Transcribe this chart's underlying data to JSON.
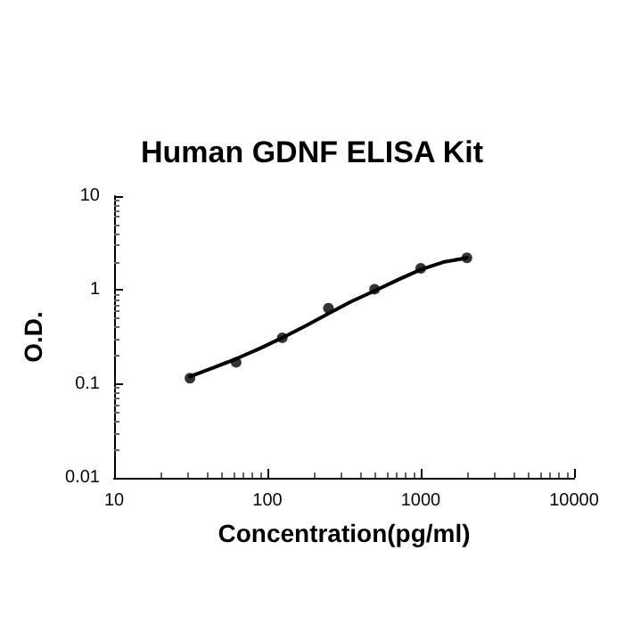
{
  "chart_data": {
    "type": "scatter",
    "title": "Human GDNF ELISA Kit",
    "xlabel": "Concentration(pg/ml)",
    "ylabel": "O.D.",
    "log": "xy",
    "xlim": [
      10,
      10000
    ],
    "xticks": [
      10,
      100,
      1000,
      10000
    ],
    "ylim": [
      0.01,
      10
    ],
    "yticks": [
      0.01,
      0.1,
      1,
      10
    ],
    "grid": false,
    "marker": "circle",
    "series": [
      {
        "color": "#000000",
        "x": [
          31.25,
          62.5,
          125,
          250,
          500,
          1000,
          2000
        ],
        "values": [
          0.115,
          0.17,
          0.31,
          0.64,
          1.02,
          1.7,
          2.2
        ]
      },
      {
        "type": "line",
        "color": "#000000",
        "marker": "none",
        "line_style": "solid",
        "x": [
          31.25,
          45,
          62.5,
          90,
          125,
          180,
          250,
          350,
          500,
          700,
          1000,
          1400,
          2000
        ],
        "values": [
          0.12,
          0.15,
          0.185,
          0.24,
          0.31,
          0.42,
          0.56,
          0.75,
          0.98,
          1.27,
          1.65,
          1.98,
          2.2
        ]
      }
    ]
  }
}
